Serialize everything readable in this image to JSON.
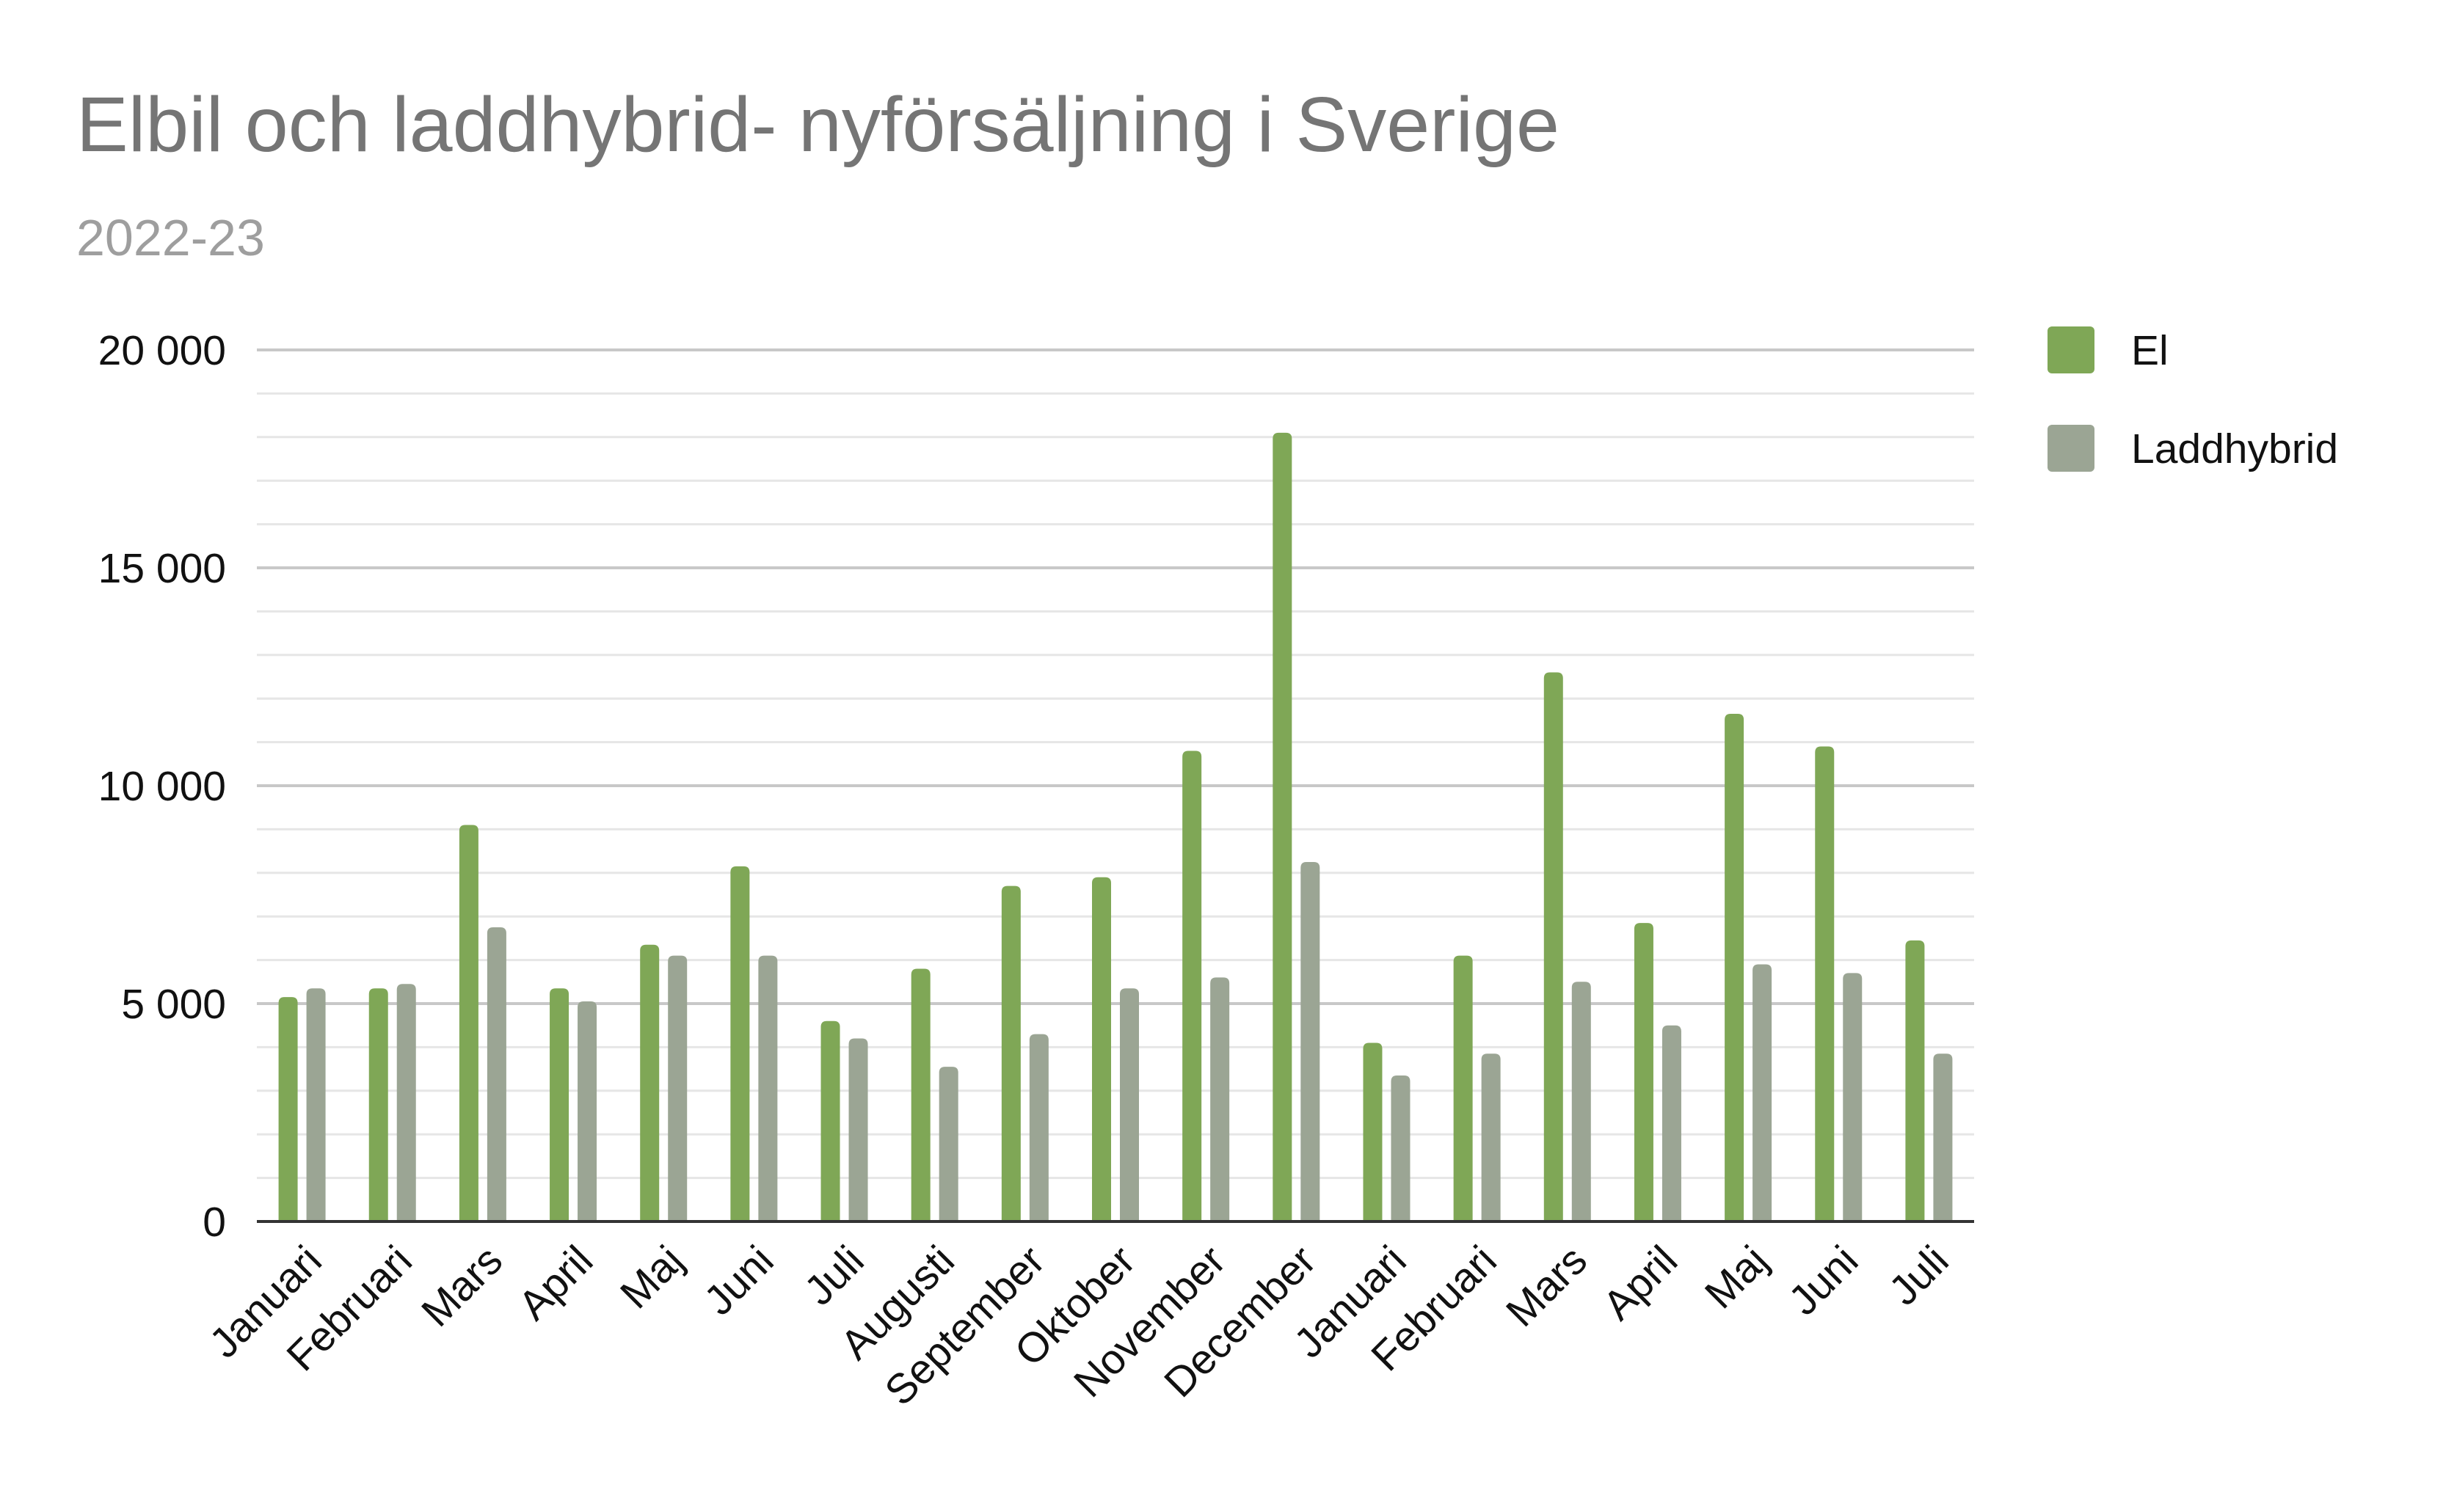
{
  "chart_data": {
    "type": "bar",
    "title": "Elbil och laddhybrid- nyförsäljning i Sverige",
    "subtitle": "2022-23",
    "xlabel": "",
    "ylabel": "",
    "ylim": [
      0,
      20000
    ],
    "y_ticks": [
      {
        "value": 0,
        "label": "0"
      },
      {
        "value": 5000,
        "label": "5 000"
      },
      {
        "value": 10000,
        "label": "10 000"
      },
      {
        "value": 15000,
        "label": "15 000"
      },
      {
        "value": 20000,
        "label": "20 000"
      }
    ],
    "grid": true,
    "legend_position": "right",
    "categories": [
      "Januari",
      "Februari",
      "Mars",
      "April",
      "Maj",
      "Juni",
      "Juli",
      "Augusti",
      "September",
      "Oktober",
      "November",
      "December",
      "Januari",
      "Februari",
      "Mars",
      "April",
      "Maj",
      "Juni",
      "Juli"
    ],
    "series": [
      {
        "name": "El",
        "color": "#7fa756",
        "values": [
          5150,
          5350,
          9100,
          5350,
          6350,
          8150,
          4600,
          5800,
          7700,
          7900,
          10800,
          18100,
          4100,
          6100,
          12600,
          6850,
          11650,
          10900,
          6450
        ]
      },
      {
        "name": "Laddhybrid",
        "color": "#9ba594",
        "values": [
          5350,
          5450,
          6750,
          5050,
          6100,
          6100,
          4200,
          3550,
          4300,
          5350,
          5600,
          8250,
          3350,
          3850,
          5500,
          4500,
          5900,
          5700,
          3850
        ]
      }
    ]
  }
}
